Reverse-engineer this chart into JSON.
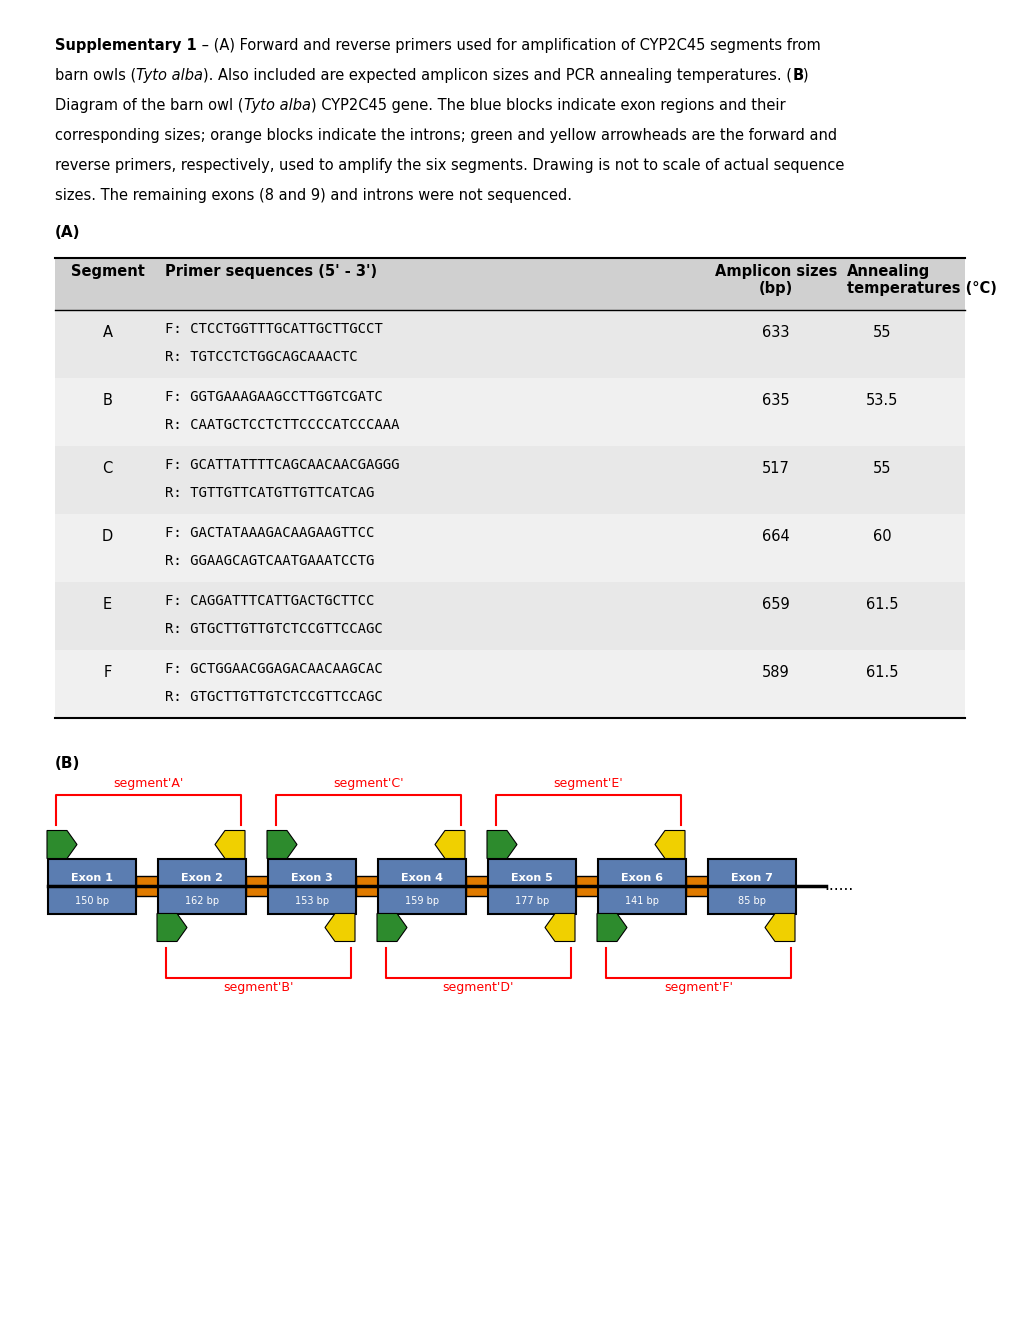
{
  "caption_lines": [
    [
      [
        "bold",
        "Supplementary 1"
      ],
      [
        "normal",
        " – (A) Forward and reverse primers used for amplification of CYP2C45 segments from"
      ]
    ],
    [
      [
        "normal",
        "barn owls ("
      ],
      [
        "italic",
        "Tyto alba"
      ],
      [
        "normal",
        "). Also included are expected amplicon sizes and PCR annealing temperatures. ("
      ],
      [
        "bold",
        "B"
      ],
      [
        "normal",
        ")"
      ]
    ],
    [
      [
        "normal",
        "Diagram of the barn owl ("
      ],
      [
        "italic",
        "Tyto alba"
      ],
      [
        "normal",
        ") CYP2C45 gene. The blue blocks indicate exon regions and their"
      ]
    ],
    [
      [
        "normal",
        "corresponding sizes; orange blocks indicate the introns; green and yellow arrowheads are the forward and"
      ]
    ],
    [
      [
        "normal",
        "reverse primers, respectively, used to amplify the six segments. Drawing is not to scale of actual sequence"
      ]
    ],
    [
      [
        "normal",
        "sizes. The remaining exons (8 and 9) and introns were not sequenced."
      ]
    ]
  ],
  "table": {
    "rows": [
      {
        "seg": "A",
        "forward": "F: CTCCTGGTTTGCATTGCTTGCCT",
        "reverse": "R: TGTCCTCTGGCAGCAAACTC",
        "size": "633",
        "temp": "55"
      },
      {
        "seg": "B",
        "forward": "F: GGTGAAAGAAGCCTTGGTCGATC",
        "reverse": "R: CAATGCTCCTCTTCCCCATCCCAAA",
        "size": "635",
        "temp": "53.5"
      },
      {
        "seg": "C",
        "forward": "F: GCATTATTTTCAGCAACAACGAGGG",
        "reverse": "R: TGTTGTTCATGTTGTTCATCAG",
        "size": "517",
        "temp": "55"
      },
      {
        "seg": "D",
        "forward": "F: GACTATAAAGACAAGAAGTTCC",
        "reverse": "R: GGAAGCAGTCAATGAAATCCTG",
        "size": "664",
        "temp": "60"
      },
      {
        "seg": "E",
        "forward": "F: CAGGATTTCATTGACTGCTTCC",
        "reverse": "R: GTGCTTGTTGTCTCCGTTCCAGC",
        "size": "659",
        "temp": "61.5"
      },
      {
        "seg": "F",
        "forward": "F: GCTGGAACGGAGACAACAAGCAC",
        "reverse": "R: GTGCTTGTTGTCTCCGTTCCAGC",
        "size": "589",
        "temp": "61.5"
      }
    ]
  },
  "diagram": {
    "exons": [
      {
        "name": "Exon 1",
        "bp": "150 bp"
      },
      {
        "name": "Exon 2",
        "bp": "162 bp"
      },
      {
        "name": "Exon 3",
        "bp": "153 bp"
      },
      {
        "name": "Exon 4",
        "bp": "159 bp"
      },
      {
        "name": "Exon 5",
        "bp": "177 bp"
      },
      {
        "name": "Exon 6",
        "bp": "141 bp"
      },
      {
        "name": "Exon 7",
        "bp": "85 bp"
      }
    ],
    "exon_color": "#5b7db1",
    "intron_color": "#e07b00",
    "forward_primer_color": "#2d8b2d",
    "reverse_primer_color": "#f0d000",
    "segment_label_color": "#ff0000"
  }
}
